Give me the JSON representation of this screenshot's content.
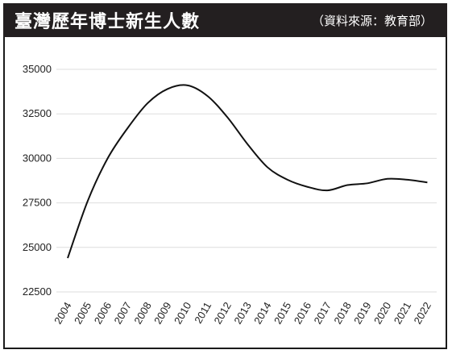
{
  "header": {
    "title": "臺灣歷年博士新生人數",
    "source": "（資料來源：教育部）"
  },
  "colors": {
    "header_bg": "#231f20",
    "line": "#111111",
    "grid": "#dddddd"
  },
  "chart_data": {
    "type": "line",
    "title": "臺灣歷年博士新生人數",
    "source": "（資料來源：教育部）",
    "x": [
      "2004",
      "2005",
      "2006",
      "2007",
      "2008",
      "2009",
      "2010",
      "2011",
      "2012",
      "2013",
      "2014",
      "2015",
      "2016",
      "2017",
      "2018",
      "2019",
      "2020",
      "2021",
      "2022"
    ],
    "series": [
      {
        "values": [
          24400,
          27600,
          30000,
          31700,
          33100,
          33900,
          34100,
          33500,
          32300,
          30800,
          29500,
          28800,
          28400,
          28200,
          28500,
          28600,
          28850,
          28800,
          28650
        ]
      }
    ],
    "y_ticks": [
      "22500",
      "25000",
      "27500",
      "30000",
      "32500",
      "35000"
    ],
    "ylim": [
      22500,
      35000
    ],
    "grid": "horizontal",
    "legend": "none"
  }
}
